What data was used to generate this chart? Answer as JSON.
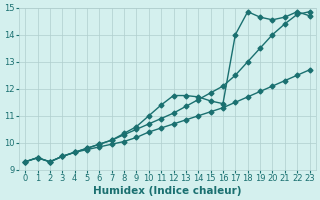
{
  "title": "",
  "xlabel": "Humidex (Indice chaleur)",
  "ylabel": "",
  "xlim": [
    -0.5,
    23.5
  ],
  "ylim": [
    9,
    15
  ],
  "yticks": [
    9,
    10,
    11,
    12,
    13,
    14,
    15
  ],
  "xticks": [
    0,
    1,
    2,
    3,
    4,
    5,
    6,
    7,
    8,
    9,
    10,
    11,
    12,
    13,
    14,
    15,
    16,
    17,
    18,
    19,
    20,
    21,
    22,
    23
  ],
  "bg_color": "#d4f0ee",
  "grid_color": "#b0cece",
  "line_color": "#1a7070",
  "line1_x": [
    0,
    1,
    2,
    3,
    4,
    5,
    6,
    7,
    8,
    9,
    10,
    11,
    12,
    13,
    14,
    15,
    16,
    17,
    18,
    19,
    20,
    21,
    22,
    23
  ],
  "line1_y": [
    9.3,
    9.45,
    9.3,
    9.5,
    9.65,
    9.75,
    9.85,
    9.95,
    10.05,
    10.2,
    10.4,
    10.55,
    10.7,
    10.85,
    11.0,
    11.15,
    11.3,
    11.5,
    11.7,
    11.9,
    12.1,
    12.3,
    12.5,
    12.7
  ],
  "line2_x": [
    0,
    1,
    2,
    3,
    4,
    5,
    6,
    7,
    8,
    9,
    10,
    11,
    12,
    13,
    14,
    15,
    16,
    17,
    18,
    19,
    20,
    21,
    22,
    23
  ],
  "line2_y": [
    9.3,
    9.45,
    9.3,
    9.5,
    9.65,
    9.8,
    9.95,
    10.1,
    10.3,
    10.5,
    10.7,
    10.9,
    11.1,
    11.35,
    11.6,
    11.85,
    12.1,
    12.5,
    13.0,
    13.5,
    14.0,
    14.4,
    14.75,
    14.85
  ],
  "line3_x": [
    0,
    1,
    2,
    3,
    4,
    5,
    6,
    7,
    8,
    9,
    10,
    11,
    12,
    13,
    14,
    15,
    16,
    17,
    18,
    19,
    20,
    21,
    22,
    23
  ],
  "line3_y": [
    9.3,
    9.45,
    9.3,
    9.5,
    9.65,
    9.8,
    9.95,
    10.1,
    10.35,
    10.6,
    11.0,
    11.4,
    11.75,
    11.75,
    11.7,
    11.55,
    11.45,
    14.0,
    14.85,
    14.65,
    14.55,
    14.65,
    14.85,
    14.7
  ],
  "marker": "D",
  "marker_size": 2.5,
  "line_width": 1.0,
  "tick_fontsize": 6.0,
  "xlabel_fontsize": 7.5
}
